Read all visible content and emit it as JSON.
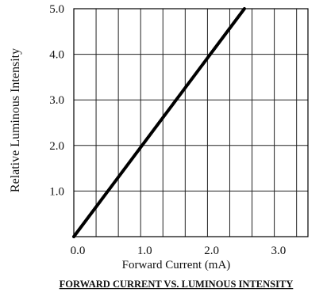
{
  "chart_data": {
    "type": "line",
    "title": "FORWARD CURRENT VS. LUMINOUS INTENSITY",
    "xlabel": "Forward Current (mA)",
    "ylabel": "Relative Luminous Intensity",
    "xlim": [
      0.0,
      3.5
    ],
    "ylim": [
      0.0,
      5.0
    ],
    "x_ticks": [
      "0.0",
      "1.0",
      "2.0",
      "3.0"
    ],
    "x_tick_values": [
      0.0,
      1.0,
      2.0,
      3.0
    ],
    "y_ticks": [
      "1.0",
      "2.0",
      "3.0",
      "4.0",
      "5.0"
    ],
    "y_tick_values": [
      1.0,
      2.0,
      3.0,
      4.0,
      5.0
    ],
    "x_grid_step": 0.333,
    "y_grid_step": 1.0,
    "grid": true,
    "series": [
      {
        "x": [
          0.0,
          2.55
        ],
        "y": [
          0.0,
          5.0
        ]
      }
    ]
  }
}
